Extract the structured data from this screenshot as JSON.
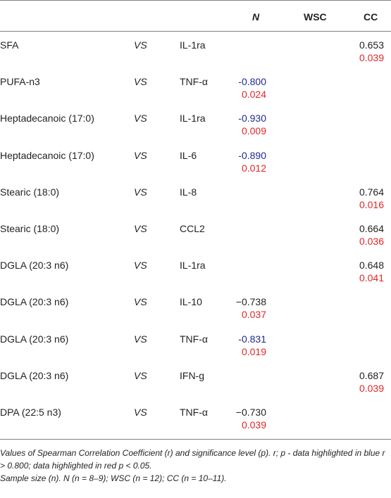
{
  "headers": {
    "n": "N",
    "wsc": "WSC",
    "cc": "CC"
  },
  "rows": [
    {
      "fa": "SFA",
      "vs": "VS",
      "cy": "IL-1ra",
      "n_r": "",
      "n_p": "",
      "n_r_color": "",
      "cc_r": "0.653",
      "cc_p": "0.039"
    },
    {
      "fa": "PUFA-n3",
      "vs": "VS",
      "cy": "TNF-α",
      "n_r": "-0.800",
      "n_p": "0.024",
      "n_r_color": "blue",
      "cc_r": "",
      "cc_p": ""
    },
    {
      "fa": "Heptadecanoic (17:0)",
      "vs": "VS",
      "cy": "IL-1ra",
      "n_r": "-0.930",
      "n_p": "0.009",
      "n_r_color": "blue",
      "cc_r": "",
      "cc_p": ""
    },
    {
      "fa": "Heptadecanoic (17:0)",
      "vs": "VS",
      "cy": "IL-6",
      "n_r": "-0.890",
      "n_p": "0.012",
      "n_r_color": "blue",
      "cc_r": "",
      "cc_p": ""
    },
    {
      "fa": "Stearic (18:0)",
      "vs": "VS",
      "cy": "IL-8",
      "n_r": "",
      "n_p": "",
      "n_r_color": "",
      "cc_r": "0.764",
      "cc_p": "0.016"
    },
    {
      "fa": "Stearic (18:0)",
      "vs": "VS",
      "cy": "CCL2",
      "n_r": "",
      "n_p": "",
      "n_r_color": "",
      "cc_r": "0.664",
      "cc_p": "0.036"
    },
    {
      "fa": "DGLA (20:3 n6)",
      "vs": "VS",
      "cy": "IL-1ra",
      "n_r": "",
      "n_p": "",
      "n_r_color": "",
      "cc_r": "0.648",
      "cc_p": "0.041"
    },
    {
      "fa": "DGLA (20:3 n6)",
      "vs": "VS",
      "cy": "IL-10",
      "n_r": "−0.738",
      "n_p": "0.037",
      "n_r_color": "dark",
      "cc_r": "",
      "cc_p": ""
    },
    {
      "fa": "DGLA (20:3 n6)",
      "vs": "VS",
      "cy": "TNF-α",
      "n_r": "-0.831",
      "n_p": "0.019",
      "n_r_color": "blue",
      "cc_r": "",
      "cc_p": ""
    },
    {
      "fa": "DGLA (20:3 n6)",
      "vs": "VS",
      "cy": "IFN-g",
      "n_r": "",
      "n_p": "",
      "n_r_color": "",
      "cc_r": "0.687",
      "cc_p": "0.039"
    },
    {
      "fa": "DPA (22:5 n3)",
      "vs": "VS",
      "cy": "TNF-α",
      "n_r": "−0.730",
      "n_p": "0.039",
      "n_r_color": "dark",
      "cc_r": "",
      "cc_p": ""
    }
  ],
  "footnote": {
    "line1": "Values of Spearman Correlation Coefficient (r) and significance level (p). r; p - data highlighted in blue r > 0.800; data highlighted in red p < 0.05.",
    "line2": "Sample size (n). N (n = 8–9); WSC (n = 12); CC (n = 10–11)."
  },
  "colors": {
    "blue": "#1f2a8f",
    "red": "#e0262a",
    "text": "#231f20",
    "rule": "#808080"
  }
}
